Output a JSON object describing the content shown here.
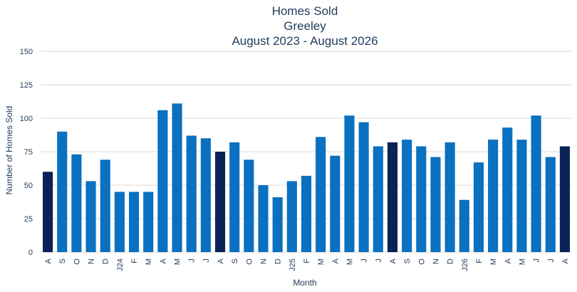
{
  "chart_data": {
    "type": "bar",
    "title": "Homes Sold",
    "subtitle": "Greeley",
    "date_range": "August 2023 - August 2026",
    "xlabel": "Month",
    "ylabel": "Number of Homes Sold",
    "ylim": [
      0,
      150
    ],
    "yticks": [
      0,
      25,
      50,
      75,
      100,
      125,
      150
    ],
    "grid": true,
    "categories": [
      "A",
      "S",
      "O",
      "N",
      "D",
      "J24",
      "F",
      "M",
      "A",
      "M",
      "J",
      "J",
      "A",
      "S",
      "O",
      "N",
      "D",
      "J25",
      "F",
      "M",
      "A",
      "M",
      "J",
      "J",
      "A",
      "S",
      "O",
      "N",
      "D",
      "J26",
      "F",
      "M",
      "A",
      "M",
      "J",
      "J",
      "A"
    ],
    "values": [
      60,
      90,
      73,
      53,
      69,
      45,
      45,
      45,
      106,
      111,
      87,
      85,
      75,
      82,
      69,
      50,
      41,
      53,
      57,
      86,
      72,
      102,
      97,
      79,
      82,
      84,
      79,
      71,
      82,
      39,
      67,
      84,
      93,
      84,
      102,
      71,
      79
    ],
    "highlight_indices": [
      0,
      12,
      24,
      36
    ],
    "colors": {
      "bar": "#0a70c0",
      "highlight": "#0b2258",
      "text": "#1f3b5a",
      "grid": "#d9d9d9"
    }
  }
}
